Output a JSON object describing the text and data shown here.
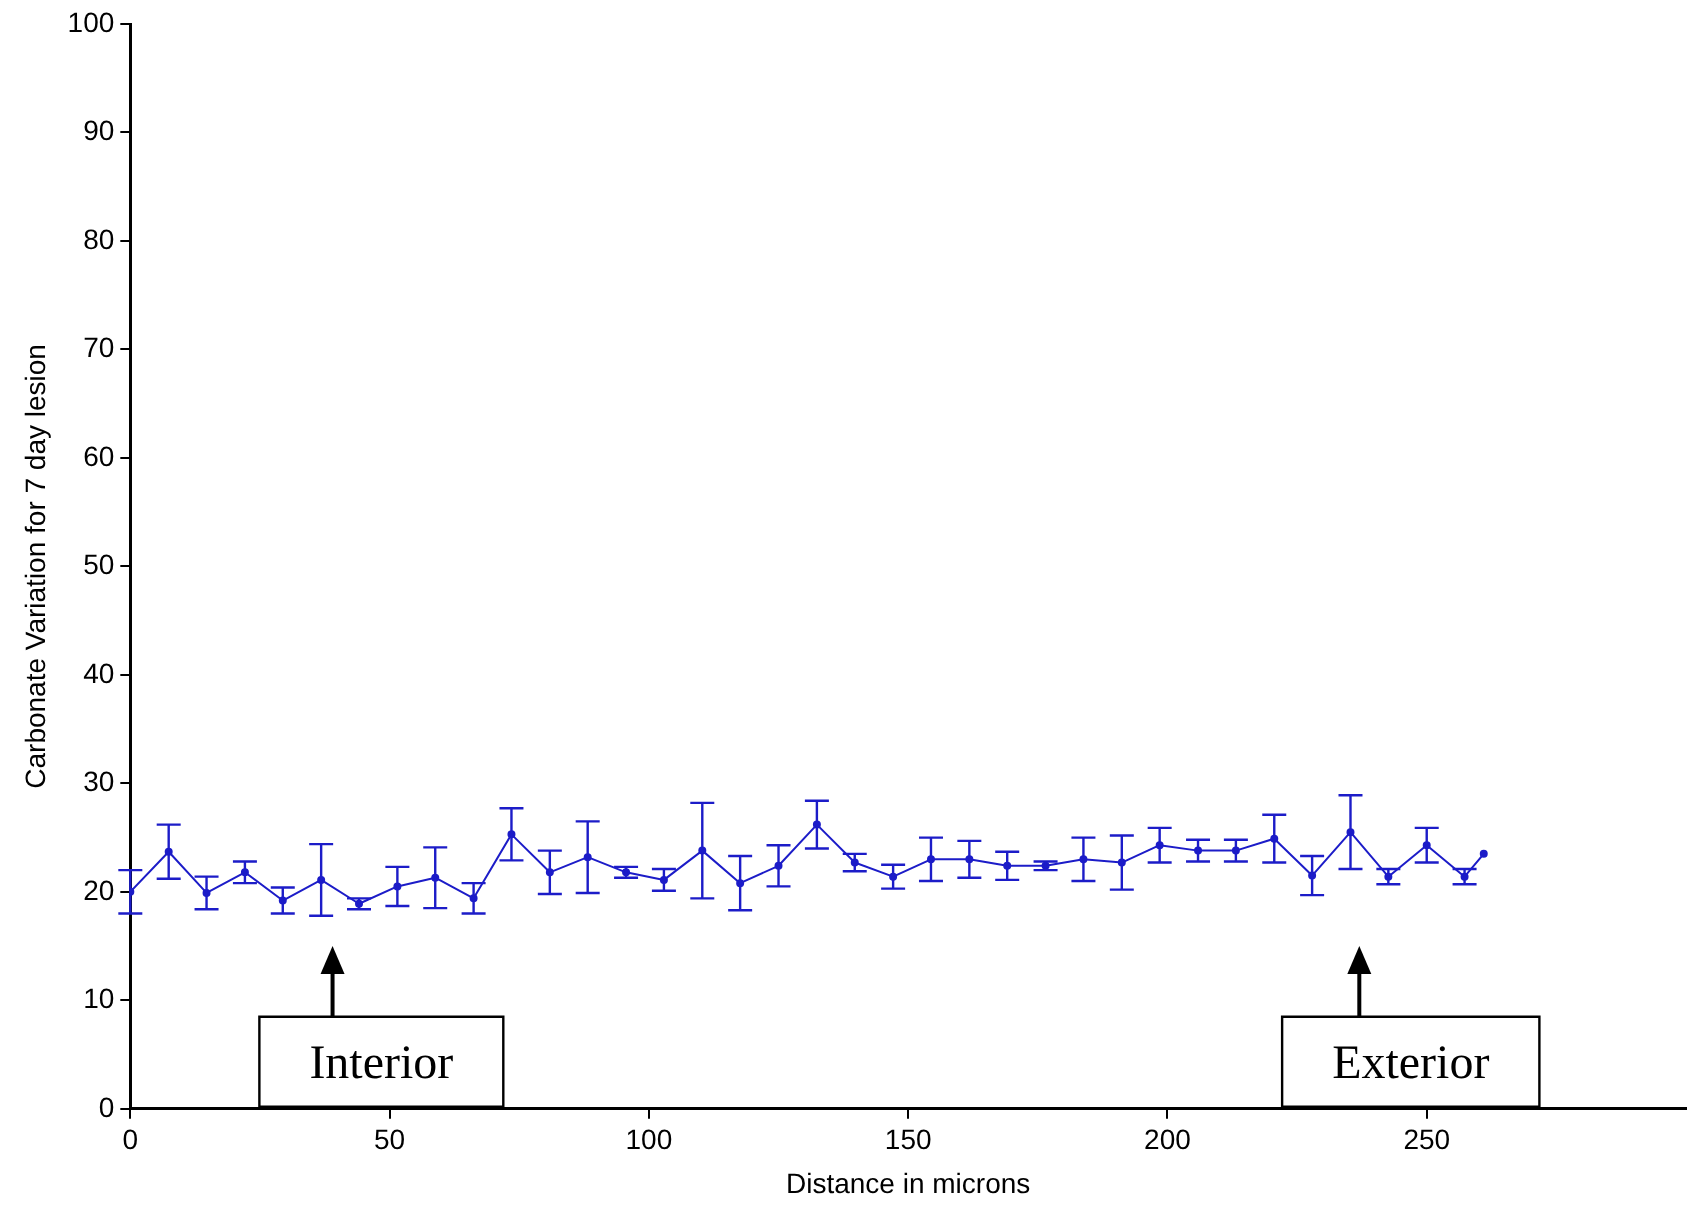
{
  "chart_data": {
    "type": "line",
    "xlabel": "Distance in microns",
    "ylabel": "Carbonate Variation for 7 day lesion",
    "x": [
      0,
      7.4,
      14.7,
      22.1,
      29.4,
      36.8,
      44.1,
      51.5,
      58.8,
      66.2,
      73.5,
      80.9,
      88.2,
      95.6,
      102.9,
      110.3,
      117.6,
      125,
      132.4,
      139.7,
      147.1,
      154.4,
      161.8,
      169.1,
      176.5,
      183.8,
      191.2,
      198.5,
      205.9,
      213.2,
      220.6,
      227.9,
      235.3,
      242.6,
      250,
      257.3,
      261
    ],
    "values": [
      20,
      23.7,
      19.9,
      21.8,
      19.2,
      21.1,
      18.9,
      20.5,
      21.3,
      19.4,
      25.3,
      21.8,
      23.2,
      21.8,
      21.1,
      23.8,
      20.8,
      22.4,
      26.2,
      22.7,
      21.4,
      23,
      23,
      22.4,
      22.4,
      23,
      22.7,
      24.3,
      23.8,
      23.8,
      24.9,
      21.5,
      25.5,
      21.4,
      24.3,
      21.4,
      23.5
    ],
    "errors": [
      2,
      2.5,
      1.5,
      1,
      1.2,
      3.3,
      0.5,
      1.8,
      2.8,
      1.4,
      2.4,
      2,
      3.3,
      0.5,
      1,
      4.4,
      2.5,
      1.9,
      2.2,
      0.8,
      1.1,
      2,
      1.7,
      1.3,
      0.4,
      2,
      2.5,
      1.6,
      1,
      1,
      2.2,
      1.8,
      3.4,
      0.7,
      1.6,
      0.7,
      null
    ],
    "color": "#1c1cc8",
    "marker": "circle",
    "line_style": "solid",
    "grid": false,
    "legend": false,
    "xlim": [
      0,
      300
    ],
    "xticks": [
      0,
      50,
      100,
      150,
      200,
      250
    ],
    "ylim": [
      0,
      100
    ],
    "yticks": [
      0,
      10,
      20,
      30,
      40,
      50,
      60,
      70,
      80,
      90,
      100
    ],
    "annotations": [
      "Interior",
      "Exterior"
    ]
  }
}
